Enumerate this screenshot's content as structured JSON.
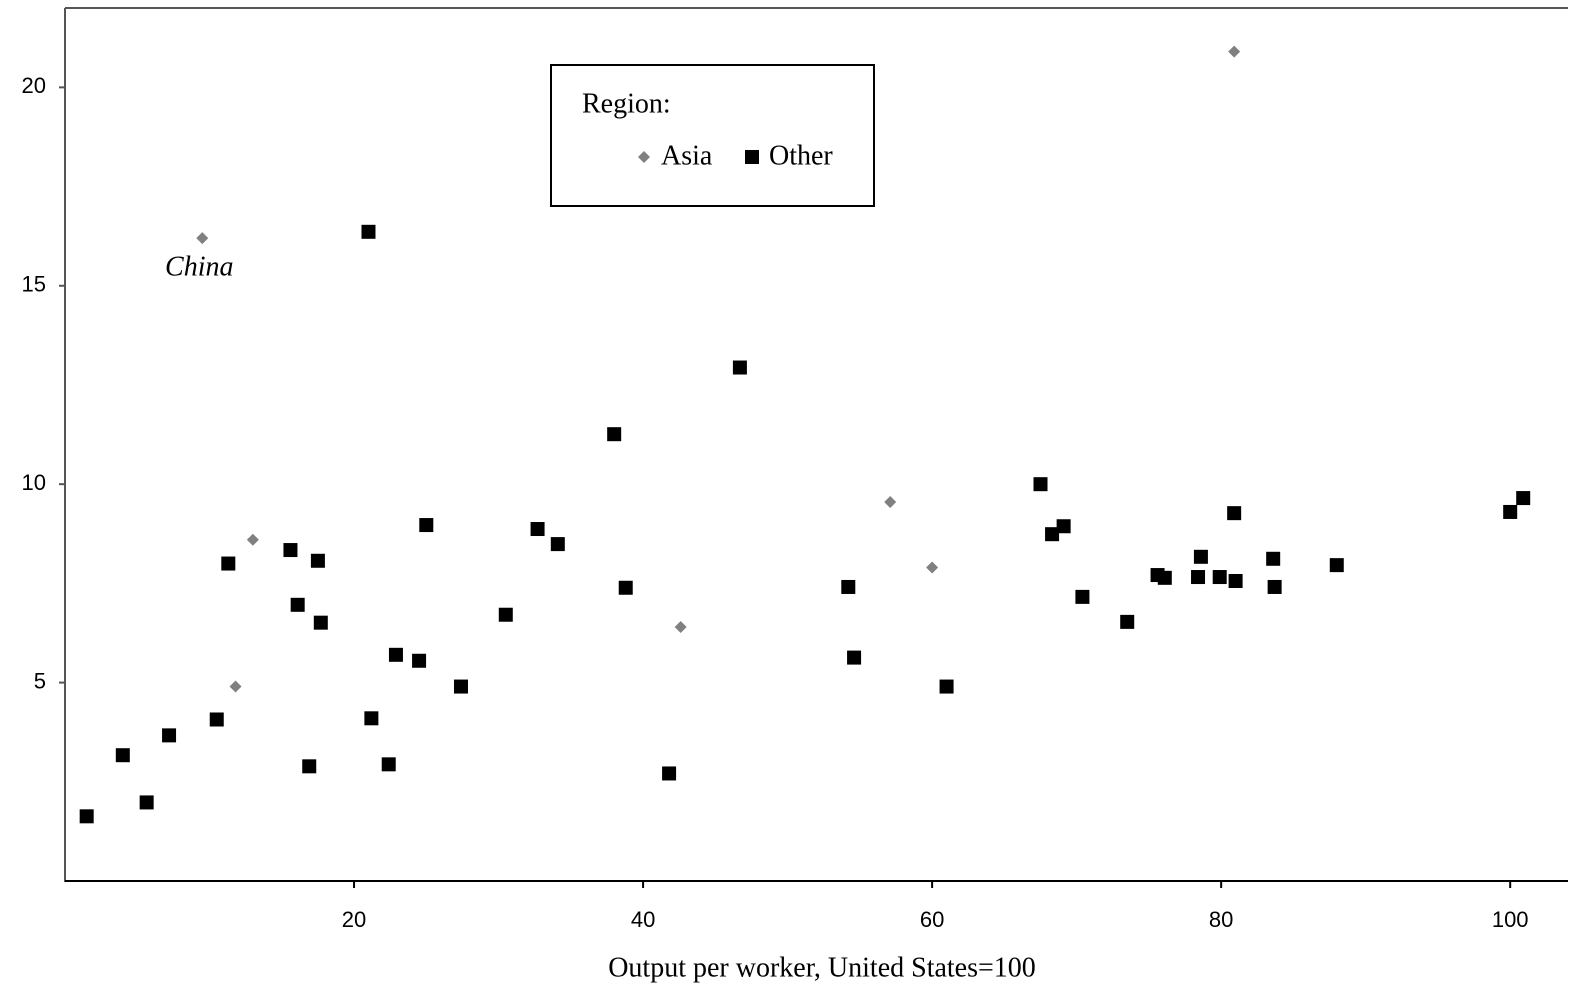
{
  "chart_data": {
    "type": "scatter",
    "x_label": "Output per worker, United States=100",
    "legend_title": "Region:",
    "xlim": [
      0,
      104
    ],
    "xticks": [
      20,
      40,
      60,
      80,
      100
    ],
    "ylim": [
      0,
      22
    ],
    "yticks": [
      5,
      10,
      15,
      20
    ],
    "grid": false,
    "series": [
      {
        "name": "Asia",
        "color": "#808080",
        "marker": "diamond",
        "x": [
          9.5,
          13.0,
          11.8,
          42.6,
          57.1,
          60.0,
          80.9
        ],
        "values": [
          16.2,
          8.6,
          4.9,
          6.4,
          9.55,
          7.9,
          20.9
        ],
        "labels": [
          "China",
          null,
          null,
          null,
          null,
          null,
          null
        ]
      },
      {
        "name": "Other",
        "color": "#000000",
        "marker": "square",
        "x": [
          1.5,
          4.0,
          5.65,
          7.2,
          10.5,
          11.3,
          15.6,
          16.1,
          16.9,
          17.5,
          17.7,
          21.0,
          21.2,
          22.4,
          22.9,
          24.5,
          25.0,
          27.4,
          30.5,
          32.7,
          34.1,
          38.0,
          38.8,
          41.8,
          46.7,
          54.2,
          54.6,
          61.0,
          67.5,
          68.3,
          69.1,
          70.4,
          73.5,
          75.6,
          76.1,
          78.4,
          78.6,
          79.9,
          80.9,
          81.0,
          83.6,
          83.7,
          88.0,
          100.0,
          100.9
        ],
        "values": [
          1.63,
          3.17,
          1.98,
          3.67,
          4.07,
          8.0,
          8.34,
          6.96,
          2.89,
          8.07,
          6.51,
          16.36,
          4.1,
          2.94,
          5.7,
          5.55,
          8.97,
          4.9,
          6.71,
          8.87,
          8.49,
          11.26,
          7.39,
          2.71,
          12.94,
          7.41,
          5.63,
          4.9,
          10.0,
          8.74,
          8.94,
          7.16,
          6.53,
          7.71,
          7.64,
          7.66,
          8.17,
          7.66,
          9.27,
          7.56,
          8.12,
          7.41,
          7.96,
          9.3,
          9.65
        ]
      }
    ]
  }
}
